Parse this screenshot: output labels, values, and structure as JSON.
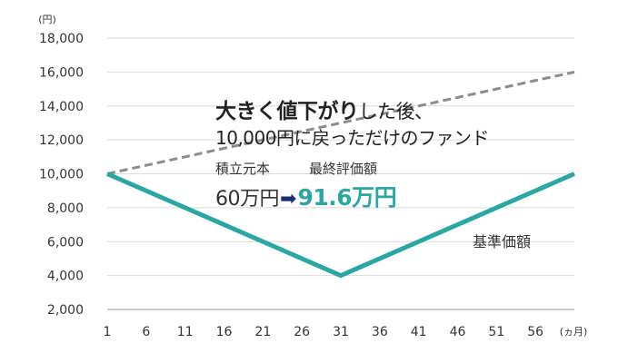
{
  "chart_data": {
    "type": "line",
    "x": [
      1,
      31,
      61
    ],
    "x_ticks": [
      1,
      6,
      11,
      16,
      21,
      26,
      31,
      36,
      41,
      46,
      51,
      56
    ],
    "x_unit": "(ヵ月)",
    "y_unit": "(円)",
    "ylim": [
      2000,
      18000
    ],
    "y_ticks": [
      "2,000",
      "4,000",
      "6,000",
      "8,000",
      "10,000",
      "12,000",
      "14,000",
      "16,000",
      "18,000"
    ],
    "y_tick_values": [
      2000,
      4000,
      6000,
      8000,
      10000,
      12000,
      14000,
      16000,
      18000
    ],
    "grid": true,
    "series": [
      {
        "name": "基準価額",
        "style": "solid",
        "color": "#2aa6a3",
        "values": [
          10000,
          4000,
          10000
        ]
      },
      {
        "style": "dashed",
        "color": "#8c8c8c",
        "values": [
          10000,
          13000,
          16000
        ]
      }
    ],
    "annotations": {
      "headline_bold": "大きく値下がり",
      "headline_rest": "した後、",
      "headline_line2": "10,000円に戻っただけのファンド",
      "principal_label": "積立元本",
      "final_label": "最終評価額",
      "principal_value": "60万円",
      "arrow": "➡",
      "final_value": "91.6万円"
    }
  }
}
